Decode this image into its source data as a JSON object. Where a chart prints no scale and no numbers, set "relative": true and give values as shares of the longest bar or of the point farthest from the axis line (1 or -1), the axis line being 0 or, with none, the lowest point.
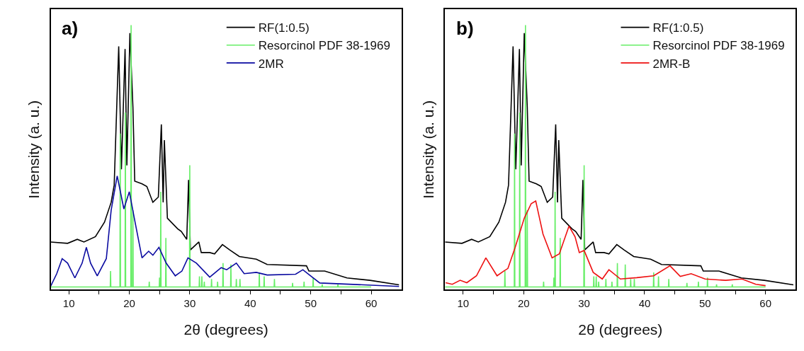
{
  "chart_data": [
    {
      "type": "line",
      "title": "a)",
      "xlabel": "2θ (degrees)",
      "ylabel": "Intensity (a. u.)",
      "relative": true,
      "legend": "top right",
      "tick_labels": "x",
      "xlim": [
        7,
        65
      ],
      "xticks": [
        10,
        {
          "value": 15,
          "label": null
        },
        20,
        {
          "value": 25,
          "label": null
        },
        30,
        {
          "value": 35,
          "label": null
        },
        40,
        {
          "value": 45,
          "label": null
        },
        50,
        {
          "value": 55,
          "label": null
        },
        60
      ],
      "series": [
        {
          "name": "RF(1:0.5)",
          "color": "#000000",
          "x": [
            7,
            9.8,
            11.4,
            12.5,
            14.4,
            15.9,
            17,
            17.5,
            18.25,
            18.7,
            19.3,
            19.6,
            20.1,
            20.6,
            20.9,
            22.1,
            22.9,
            23.9,
            24.8,
            25.3,
            25.6,
            25.8,
            26.3,
            28,
            28.6,
            29.5,
            29.8,
            30.1,
            31.5,
            31.9,
            33.3,
            34.1,
            35.4,
            36.6,
            38.2,
            41,
            42.8,
            49.3,
            49.7,
            52.3,
            56,
            59.8,
            64.6
          ],
          "values": [
            0.18,
            0.175,
            0.19,
            0.18,
            0.2,
            0.255,
            0.33,
            0.395,
            0.92,
            0.455,
            0.91,
            0.47,
            0.97,
            0.69,
            0.41,
            0.4,
            0.39,
            0.33,
            0.35,
            0.625,
            0.33,
            0.565,
            0.27,
            0.23,
            0.22,
            0.19,
            0.415,
            0.15,
            0.18,
            0.14,
            0.14,
            0.135,
            0.17,
            0.15,
            0.125,
            0.115,
            0.095,
            0.09,
            0.07,
            0.07,
            0.044,
            0.035,
            0.018
          ]
        },
        {
          "name": "Resorcinol PDF 38-1969",
          "color": "#66ee66",
          "x": [
            7,
            16.85,
            16.9,
            16.95,
            18.45,
            18.5,
            18.55,
            19.3,
            19.35,
            19.4,
            20.25,
            20.3,
            20.35,
            20.55,
            20.6,
            20.65,
            23.25,
            23.3,
            23.35,
            24.95,
            25.0,
            25.05,
            25.15,
            25.2,
            25.25,
            26.0,
            26.05,
            26.1,
            29.95,
            30.0,
            30.05,
            31.55,
            31.6,
            31.65,
            31.95,
            32.0,
            32.05,
            32.35,
            32.4,
            32.45,
            33.55,
            33.6,
            33.65,
            34.55,
            34.6,
            34.65,
            35.45,
            35.5,
            35.55,
            36.75,
            36.8,
            36.85,
            37.65,
            37.7,
            37.75,
            38.25,
            38.3,
            38.35,
            41.45,
            41.5,
            41.55,
            42.25,
            42.3,
            42.35,
            43.95,
            44.0,
            44.05,
            46.95,
            47.0,
            47.05,
            48.85,
            48.9,
            48.95,
            50.35,
            50.4,
            50.45,
            51.85,
            51.9,
            51.95,
            54.45,
            54.5,
            54.55,
            60
          ],
          "values": [
            0.01,
            0.01,
            0.07,
            0.01,
            0.01,
            0.59,
            0.01,
            0.01,
            0.67,
            0.01,
            0.01,
            1.0,
            0.01,
            0.01,
            0.3,
            0.01,
            0.01,
            0.03,
            0.01,
            0.01,
            0.045,
            0.01,
            0.01,
            0.37,
            0.01,
            0.01,
            0.195,
            0.01,
            0.01,
            0.47,
            0.01,
            0.01,
            0.05,
            0.01,
            0.01,
            0.05,
            0.01,
            0.01,
            0.03,
            0.01,
            0.01,
            0.04,
            0.01,
            0.01,
            0.03,
            0.01,
            0.01,
            0.1,
            0.01,
            0.01,
            0.095,
            0.01,
            0.01,
            0.04,
            0.01,
            0.01,
            0.04,
            0.01,
            0.01,
            0.065,
            0.01,
            0.01,
            0.05,
            0.01,
            0.01,
            0.04,
            0.01,
            0.01,
            0.025,
            0.01,
            0.01,
            0.03,
            0.01,
            0.01,
            0.045,
            0.01,
            0.01,
            0.02,
            0.01,
            0.01,
            0.02,
            0.01,
            0.01
          ]
        },
        {
          "name": "2MR",
          "color": "#0a0aa0",
          "x": [
            7,
            8,
            8.9,
            9.8,
            11,
            12.2,
            12.9,
            13.6,
            14.7,
            16.2,
            17,
            18,
            19.1,
            20,
            21,
            22.1,
            23.2,
            23.9,
            24.9,
            26.1,
            27.6,
            28.7,
            29.7,
            31.1,
            33.3,
            35.2,
            36.1,
            37.7,
            39,
            41,
            42.8,
            47.5,
            48.7,
            49.8,
            51.5,
            64.6
          ],
          "values": [
            0.013,
            0.06,
            0.117,
            0.1,
            0.044,
            0.1,
            0.16,
            0.1,
            0.052,
            0.117,
            0.3,
            0.43,
            0.305,
            0.37,
            0.25,
            0.12,
            0.145,
            0.13,
            0.16,
            0.1,
            0.052,
            0.07,
            0.12,
            0.1,
            0.047,
            0.083,
            0.075,
            0.1,
            0.06,
            0.065,
            0.055,
            0.058,
            0.075,
            0.055,
            0.025,
            0.012
          ]
        }
      ]
    },
    {
      "type": "line",
      "title": "b)",
      "xlabel": "2θ (degrees)",
      "ylabel": "Intensity (a. u.)",
      "relative": true,
      "legend": "top right",
      "tick_labels": "x",
      "xlim": [
        7,
        65
      ],
      "xticks": [
        10,
        {
          "value": 15,
          "label": null
        },
        20,
        {
          "value": 25,
          "label": null
        },
        30,
        {
          "value": 35,
          "label": null
        },
        40,
        {
          "value": 45,
          "label": null
        },
        50,
        {
          "value": 55,
          "label": null
        },
        60
      ],
      "series": [
        {
          "name": "RF(1:0.5)",
          "color": "#000000",
          "x": [
            7,
            9.8,
            11.4,
            12.5,
            14.4,
            15.9,
            17,
            17.5,
            18.25,
            18.7,
            19.3,
            19.6,
            20.1,
            20.6,
            20.9,
            22.1,
            22.9,
            23.9,
            24.8,
            25.3,
            25.6,
            25.8,
            26.3,
            28,
            28.6,
            29.5,
            29.8,
            30.1,
            31.5,
            31.9,
            33.3,
            34.1,
            35.4,
            36.6,
            38.2,
            41,
            42.8,
            49.3,
            49.7,
            52.3,
            56,
            59.8,
            64.6
          ],
          "values": [
            0.18,
            0.175,
            0.19,
            0.18,
            0.2,
            0.255,
            0.33,
            0.395,
            0.92,
            0.455,
            0.91,
            0.47,
            0.97,
            0.69,
            0.41,
            0.4,
            0.39,
            0.33,
            0.35,
            0.625,
            0.33,
            0.565,
            0.27,
            0.23,
            0.22,
            0.19,
            0.415,
            0.15,
            0.18,
            0.14,
            0.14,
            0.135,
            0.17,
            0.15,
            0.125,
            0.115,
            0.095,
            0.09,
            0.07,
            0.07,
            0.044,
            0.035,
            0.018
          ]
        },
        {
          "name": "Resorcinol PDF 38-1969",
          "color": "#66ee66",
          "x": [
            7,
            16.85,
            16.9,
            16.95,
            18.45,
            18.5,
            18.55,
            19.3,
            19.35,
            19.4,
            20.25,
            20.3,
            20.35,
            20.55,
            20.6,
            20.65,
            23.25,
            23.3,
            23.35,
            24.95,
            25.0,
            25.05,
            25.15,
            25.2,
            25.25,
            26.0,
            26.05,
            26.1,
            29.95,
            30.0,
            30.05,
            31.55,
            31.6,
            31.65,
            31.95,
            32.0,
            32.05,
            32.35,
            32.4,
            32.45,
            33.55,
            33.6,
            33.65,
            34.55,
            34.6,
            34.65,
            35.45,
            35.5,
            35.55,
            36.75,
            36.8,
            36.85,
            37.65,
            37.7,
            37.75,
            38.25,
            38.3,
            38.35,
            41.45,
            41.5,
            41.55,
            42.25,
            42.3,
            42.35,
            43.95,
            44.0,
            44.05,
            46.95,
            47.0,
            47.05,
            48.85,
            48.9,
            48.95,
            50.35,
            50.4,
            50.45,
            51.85,
            51.9,
            51.95,
            54.45,
            54.5,
            54.55,
            60
          ],
          "values": [
            0.01,
            0.01,
            0.07,
            0.01,
            0.01,
            0.59,
            0.01,
            0.01,
            0.67,
            0.01,
            0.01,
            1.0,
            0.01,
            0.01,
            0.3,
            0.01,
            0.01,
            0.03,
            0.01,
            0.01,
            0.045,
            0.01,
            0.01,
            0.37,
            0.01,
            0.01,
            0.195,
            0.01,
            0.01,
            0.47,
            0.01,
            0.01,
            0.05,
            0.01,
            0.01,
            0.05,
            0.01,
            0.01,
            0.03,
            0.01,
            0.01,
            0.04,
            0.01,
            0.01,
            0.03,
            0.01,
            0.01,
            0.1,
            0.01,
            0.01,
            0.095,
            0.01,
            0.01,
            0.04,
            0.01,
            0.01,
            0.04,
            0.01,
            0.01,
            0.065,
            0.01,
            0.01,
            0.05,
            0.01,
            0.01,
            0.04,
            0.01,
            0.01,
            0.025,
            0.01,
            0.01,
            0.03,
            0.01,
            0.01,
            0.045,
            0.01,
            0.01,
            0.02,
            0.01,
            0.01,
            0.02,
            0.01,
            0.01
          ]
        },
        {
          "name": "2MR-B",
          "color": "#ee1111",
          "x": [
            7.1,
            8.2,
            9.5,
            10.6,
            12.2,
            13.75,
            15.6,
            16.7,
            17.4,
            18.6,
            20.1,
            21.25,
            22,
            23.2,
            24.7,
            25.9,
            27.5,
            28.5,
            29.2,
            30,
            31.5,
            33,
            34.1,
            36,
            38.7,
            41.5,
            44.2,
            45.9,
            47.7,
            50,
            53.4,
            56.1,
            58.4,
            60
          ],
          "values": [
            0.026,
            0.02,
            0.035,
            0.026,
            0.052,
            0.12,
            0.052,
            0.07,
            0.08,
            0.16,
            0.27,
            0.325,
            0.335,
            0.21,
            0.12,
            0.135,
            0.24,
            0.2,
            0.14,
            0.148,
            0.065,
            0.04,
            0.075,
            0.04,
            0.045,
            0.052,
            0.09,
            0.05,
            0.06,
            0.04,
            0.035,
            0.04,
            0.02,
            0.015
          ]
        }
      ]
    }
  ]
}
